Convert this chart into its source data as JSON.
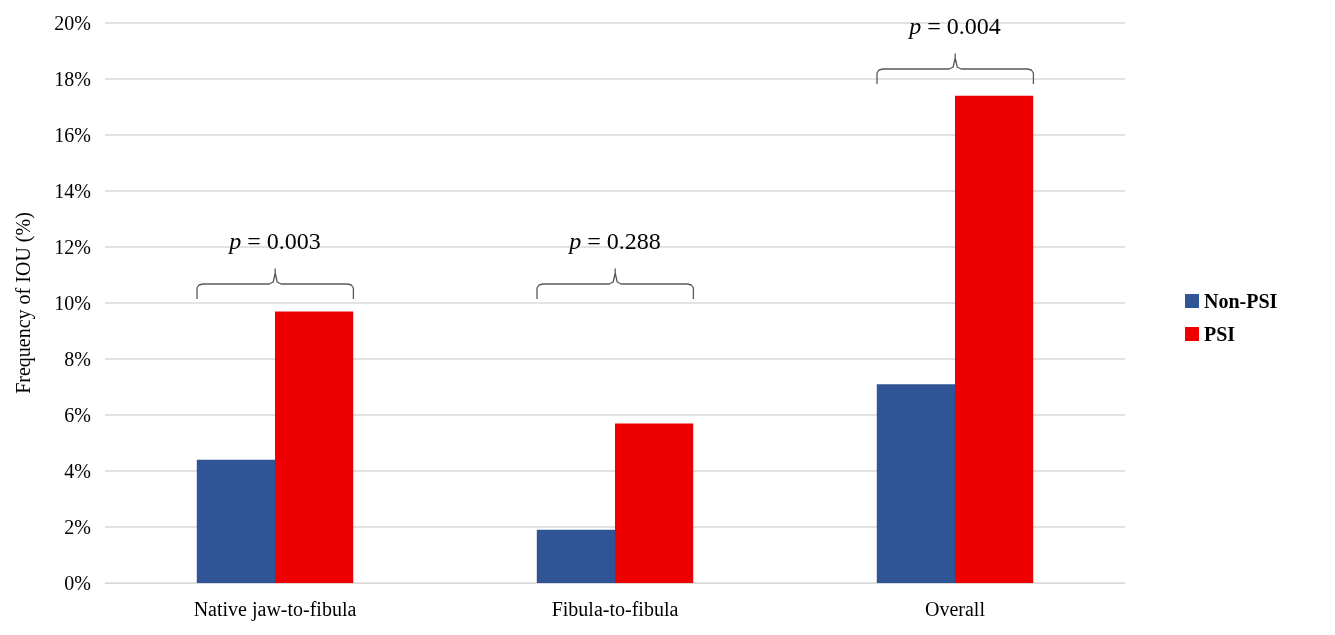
{
  "chart_data": {
    "type": "bar",
    "ylabel": "Frequency of IOU (%)",
    "categories": [
      "Native jaw-to-fibula",
      "Fibula-to-fibula",
      "Overall"
    ],
    "series": [
      {
        "name": "Non-PSI",
        "color": "#2f5597",
        "values": [
          4.4,
          1.9,
          7.1
        ]
      },
      {
        "name": "PSI",
        "color": "#ee0000",
        "values": [
          9.7,
          5.7,
          17.4
        ]
      }
    ],
    "ylim": [
      0,
      20
    ],
    "yticks": [
      {
        "value": 0,
        "label": "0%"
      },
      {
        "value": 2,
        "label": "2%"
      },
      {
        "value": 4,
        "label": "4%"
      },
      {
        "value": 6,
        "label": "6%"
      },
      {
        "value": 8,
        "label": "8%"
      },
      {
        "value": 10,
        "label": "10%"
      },
      {
        "value": 12,
        "label": "12%"
      },
      {
        "value": 14,
        "label": "14%"
      },
      {
        "value": 16,
        "label": "16%"
      },
      {
        "value": 18,
        "label": "18%"
      },
      {
        "value": 20,
        "label": "20%"
      }
    ],
    "grid": "y",
    "legend": "right",
    "annotations": [
      "p = 0.003",
      "p = 0.288",
      "p = 0.004"
    ]
  }
}
